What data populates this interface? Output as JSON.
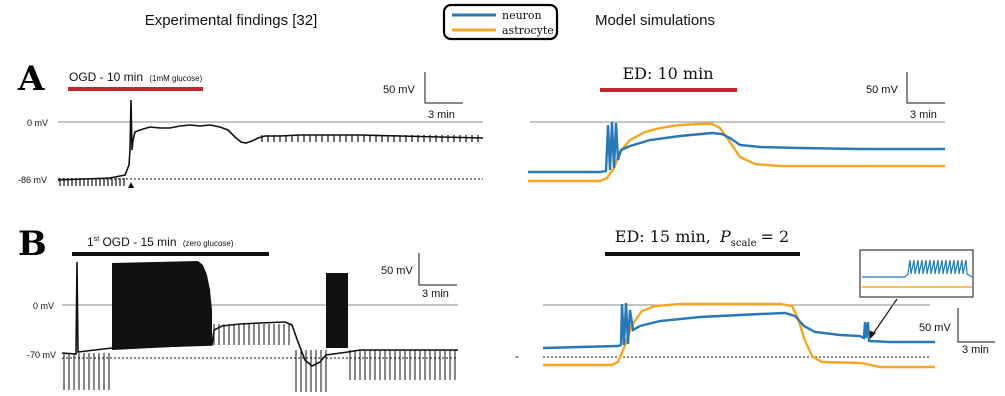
{
  "headers": {
    "left": "Experimental findings [32]",
    "right": "Model simulations"
  },
  "legend": {
    "items": [
      {
        "name": "neuron",
        "color": "#2878b5"
      },
      {
        "name": "astrocyte",
        "color": "#f5a623"
      }
    ]
  },
  "colors": {
    "neuron": "#2878b5",
    "astrocyte": "#f5a623",
    "red_bar": "#c0282d",
    "black_bar": "#111111",
    "gray_line": "#888888"
  },
  "panelA": {
    "label": "A",
    "exp": {
      "bar_label_main": "OGD - 10 min",
      "bar_label_small": "(1mM glucose)",
      "scale_mv": "50 mV",
      "scale_min": "3 min",
      "zero_label": "0 mV",
      "rest_label": "-86 mV"
    },
    "model": {
      "bar_label": "ED: 10 min",
      "scale_mv": "50 mV",
      "scale_min": "3 min"
    }
  },
  "panelB": {
    "label": "B",
    "exp": {
      "bar_label_sup_pre": "1",
      "bar_label_sup": "st",
      "bar_label_main": " OGD - 15 min",
      "bar_label_small": "(zero glucose)",
      "scale_mv": "50 mV",
      "scale_min": "3 min",
      "zero_label": "0 mV",
      "rest_label": "-70 mV"
    },
    "model": {
      "bar_label_pre": "ED: 15 min,",
      "bar_label_var": "P",
      "bar_label_sub": "scale",
      "bar_label_post": "= 2",
      "scale_mv": "50 mV",
      "scale_min": "3 min",
      "dash": "-"
    }
  }
}
